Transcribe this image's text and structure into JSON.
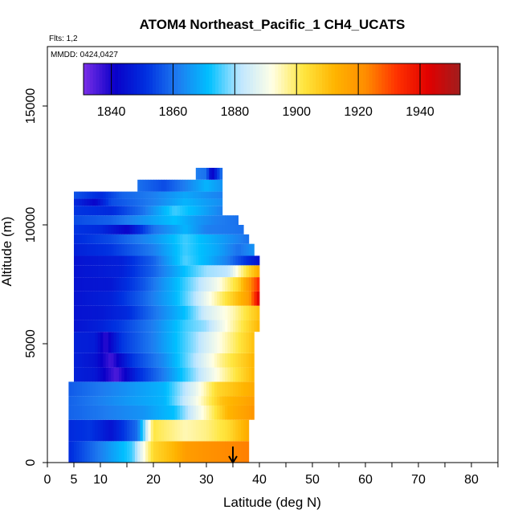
{
  "chart_data": {
    "type": "heatmap",
    "title": "ATOM4 Northeast_Pacific_1 CH4_UCATS",
    "subtitle_flights": "Flts: 1,2",
    "subtitle_dates": "MMDD: 0424,0427",
    "xlabel": "Latitude (deg N)",
    "ylabel": "Altitude (m)",
    "xlim": [
      0,
      85
    ],
    "ylim": [
      0,
      17500
    ],
    "x_ticks": [
      0,
      10,
      20,
      30,
      40,
      50,
      60,
      70,
      80
    ],
    "x_minor_ticks": [
      5,
      15,
      25,
      35,
      45,
      55,
      65,
      75,
      85
    ],
    "x_tick_labels": [
      "0",
      "5",
      "10",
      "20",
      "30",
      "40",
      "50",
      "60",
      "70",
      "80"
    ],
    "x_tick_label_values": [
      0,
      5,
      10,
      20,
      30,
      40,
      50,
      60,
      70,
      80
    ],
    "y_ticks": [
      0,
      5000,
      10000,
      15000
    ],
    "y_tick_labels": [
      "0",
      "5000",
      "10000",
      "15000"
    ],
    "colorbar": {
      "min": 1831,
      "max": 1953,
      "ticks": [
        1840,
        1860,
        1880,
        1900,
        1920,
        1940
      ],
      "tick_labels": [
        "1840",
        "1860",
        "1880",
        "1900",
        "1920",
        "1940"
      ],
      "colors": [
        "#7b2fe8",
        "#0a00c8",
        "#0030e0",
        "#1e7cf0",
        "#00c0ff",
        "#bfe6ff",
        "#ffffe6",
        "#ffe640",
        "#ffb400",
        "#ff8c00",
        "#ff3000",
        "#e00000",
        "#a01e1e"
      ]
    },
    "arrow_marker_latitude": 35,
    "layers": [
      {
        "alt_bottom": 0,
        "alt_top": 900,
        "lat_min": 4,
        "lat_max": 38,
        "knots": [
          [
            4,
            1850
          ],
          [
            10,
            1862
          ],
          [
            16,
            1875
          ],
          [
            20,
            1905
          ],
          [
            24,
            1912
          ],
          [
            26,
            1918
          ],
          [
            32,
            1922
          ],
          [
            38,
            1924
          ]
        ]
      },
      {
        "alt_bottom": 900,
        "alt_top": 1800,
        "lat_min": 4,
        "lat_max": 38,
        "knots": [
          [
            4,
            1850
          ],
          [
            8,
            1852
          ],
          [
            12,
            1845
          ],
          [
            17,
            1860
          ],
          [
            20,
            1902
          ],
          [
            26,
            1895
          ],
          [
            30,
            1898
          ],
          [
            34,
            1904
          ],
          [
            38,
            1915
          ]
        ]
      },
      {
        "alt_bottom": 1800,
        "alt_top": 2400,
        "lat_min": 4,
        "lat_max": 39,
        "knots": [
          [
            4,
            1858
          ],
          [
            12,
            1862
          ],
          [
            18,
            1865
          ],
          [
            24,
            1872
          ],
          [
            30,
            1895
          ],
          [
            34,
            1912
          ],
          [
            39,
            1920
          ]
        ]
      },
      {
        "alt_bottom": 2400,
        "alt_top": 2800,
        "lat_min": 4,
        "lat_max": 39,
        "knots": [
          [
            4,
            1858
          ],
          [
            14,
            1865
          ],
          [
            22,
            1870
          ],
          [
            28,
            1890
          ],
          [
            33,
            1910
          ],
          [
            39,
            1918
          ]
        ]
      },
      {
        "alt_bottom": 2800,
        "alt_top": 3400,
        "lat_min": 4,
        "lat_max": 39,
        "knots": [
          [
            4,
            1857
          ],
          [
            14,
            1864
          ],
          [
            22,
            1870
          ],
          [
            28,
            1888
          ],
          [
            32,
            1905
          ],
          [
            39,
            1915
          ]
        ]
      },
      {
        "alt_bottom": 3400,
        "alt_top": 4000,
        "lat_min": 5,
        "lat_max": 39,
        "knots": [
          [
            5,
            1848
          ],
          [
            9,
            1846
          ],
          [
            13,
            1835
          ],
          [
            17,
            1850
          ],
          [
            22,
            1862
          ],
          [
            28,
            1880
          ],
          [
            33,
            1895
          ],
          [
            39,
            1912
          ]
        ]
      },
      {
        "alt_bottom": 4000,
        "alt_top": 4600,
        "lat_min": 5,
        "lat_max": 39,
        "knots": [
          [
            5,
            1848
          ],
          [
            9,
            1845
          ],
          [
            12,
            1836
          ],
          [
            16,
            1852
          ],
          [
            22,
            1864
          ],
          [
            28,
            1882
          ],
          [
            33,
            1898
          ],
          [
            39,
            1912
          ]
        ]
      },
      {
        "alt_bottom": 4600,
        "alt_top": 5500,
        "lat_min": 5,
        "lat_max": 39,
        "knots": [
          [
            5,
            1848
          ],
          [
            9,
            1847
          ],
          [
            11,
            1838
          ],
          [
            14,
            1852
          ],
          [
            20,
            1862
          ],
          [
            28,
            1880
          ],
          [
            34,
            1896
          ],
          [
            39,
            1910
          ]
        ]
      },
      {
        "alt_bottom": 5500,
        "alt_top": 6000,
        "lat_min": 5,
        "lat_max": 40,
        "knots": [
          [
            5,
            1845
          ],
          [
            10,
            1848
          ],
          [
            14,
            1853
          ],
          [
            20,
            1862
          ],
          [
            26,
            1875
          ],
          [
            30,
            1880
          ],
          [
            35,
            1896
          ],
          [
            40,
            1912
          ]
        ]
      },
      {
        "alt_bottom": 6000,
        "alt_top": 6600,
        "lat_min": 5,
        "lat_max": 40,
        "knots": [
          [
            5,
            1845
          ],
          [
            10,
            1846
          ],
          [
            15,
            1850
          ],
          [
            20,
            1860
          ],
          [
            26,
            1872
          ],
          [
            30,
            1885
          ],
          [
            35,
            1895
          ],
          [
            40,
            1910
          ]
        ]
      },
      {
        "alt_bottom": 6600,
        "alt_top": 7200,
        "lat_min": 5,
        "lat_max": 40,
        "knots": [
          [
            5,
            1845
          ],
          [
            12,
            1848
          ],
          [
            18,
            1858
          ],
          [
            24,
            1870
          ],
          [
            28,
            1882
          ],
          [
            33,
            1900
          ],
          [
            38,
            1918
          ],
          [
            40,
            1945
          ]
        ]
      },
      {
        "alt_bottom": 7200,
        "alt_top": 7800,
        "lat_min": 5,
        "lat_max": 40,
        "knots": [
          [
            5,
            1845
          ],
          [
            12,
            1846
          ],
          [
            18,
            1856
          ],
          [
            24,
            1870
          ],
          [
            28,
            1880
          ],
          [
            32,
            1890
          ],
          [
            36,
            1905
          ],
          [
            40,
            1935
          ]
        ]
      },
      {
        "alt_bottom": 7800,
        "alt_top": 8300,
        "lat_min": 5,
        "lat_max": 40,
        "knots": [
          [
            5,
            1845
          ],
          [
            14,
            1848
          ],
          [
            20,
            1858
          ],
          [
            26,
            1872
          ],
          [
            30,
            1880
          ],
          [
            34,
            1882
          ],
          [
            38,
            1905
          ],
          [
            40,
            1915
          ]
        ]
      },
      {
        "alt_bottom": 8300,
        "alt_top": 8700,
        "lat_min": 5,
        "lat_max": 40,
        "knots": [
          [
            5,
            1845
          ],
          [
            14,
            1848
          ],
          [
            20,
            1858
          ],
          [
            26,
            1876
          ],
          [
            30,
            1870
          ],
          [
            34,
            1862
          ],
          [
            38,
            1850
          ],
          [
            40,
            1845
          ]
        ]
      },
      {
        "alt_bottom": 8700,
        "alt_top": 9200,
        "lat_min": 5,
        "lat_max": 39,
        "knots": [
          [
            5,
            1848
          ],
          [
            12,
            1852
          ],
          [
            20,
            1862
          ],
          [
            26,
            1875
          ],
          [
            32,
            1868
          ],
          [
            36,
            1860
          ],
          [
            39,
            1865
          ]
        ]
      },
      {
        "alt_bottom": 9200,
        "alt_top": 9600,
        "lat_min": 5,
        "lat_max": 38,
        "knots": [
          [
            5,
            1850
          ],
          [
            12,
            1855
          ],
          [
            20,
            1865
          ],
          [
            26,
            1875
          ],
          [
            30,
            1870
          ],
          [
            34,
            1865
          ],
          [
            38,
            1860
          ]
        ]
      },
      {
        "alt_bottom": 9600,
        "alt_top": 10000,
        "lat_min": 5,
        "lat_max": 37,
        "knots": [
          [
            5,
            1852
          ],
          [
            10,
            1850
          ],
          [
            15,
            1842
          ],
          [
            20,
            1860
          ],
          [
            26,
            1870
          ],
          [
            30,
            1862
          ],
          [
            37,
            1860
          ]
        ]
      },
      {
        "alt_bottom": 10000,
        "alt_top": 10400,
        "lat_min": 5,
        "lat_max": 36,
        "knots": [
          [
            5,
            1855
          ],
          [
            12,
            1858
          ],
          [
            18,
            1865
          ],
          [
            24,
            1872
          ],
          [
            28,
            1866
          ],
          [
            32,
            1862
          ],
          [
            36,
            1860
          ]
        ]
      },
      {
        "alt_bottom": 10400,
        "alt_top": 10800,
        "lat_min": 5,
        "lat_max": 33,
        "knots": [
          [
            5,
            1852
          ],
          [
            12,
            1850
          ],
          [
            18,
            1860
          ],
          [
            24,
            1875
          ],
          [
            28,
            1870
          ],
          [
            33,
            1862
          ]
        ]
      },
      {
        "alt_bottom": 10800,
        "alt_top": 11100,
        "lat_min": 5,
        "lat_max": 33,
        "knots": [
          [
            5,
            1850
          ],
          [
            9,
            1842
          ],
          [
            12,
            1855
          ],
          [
            20,
            1862
          ],
          [
            26,
            1870
          ],
          [
            33,
            1864
          ]
        ]
      },
      {
        "alt_bottom": 11100,
        "alt_top": 11400,
        "lat_min": 5,
        "lat_max": 33,
        "knots": [
          [
            5,
            1856
          ],
          [
            10,
            1850
          ],
          [
            14,
            1858
          ],
          [
            20,
            1862
          ],
          [
            26,
            1868
          ],
          [
            33,
            1862
          ]
        ]
      },
      {
        "alt_bottom": 11400,
        "alt_top": 11900,
        "lat_min": 17,
        "lat_max": 33,
        "knots": [
          [
            17,
            1860
          ],
          [
            22,
            1855
          ],
          [
            26,
            1862
          ],
          [
            30,
            1870
          ],
          [
            33,
            1865
          ]
        ]
      },
      {
        "alt_bottom": 11900,
        "alt_top": 12400,
        "lat_min": 28,
        "lat_max": 33,
        "knots": [
          [
            28,
            1862
          ],
          [
            30,
            1860
          ],
          [
            31,
            1840
          ],
          [
            33,
            1862
          ]
        ]
      }
    ]
  }
}
